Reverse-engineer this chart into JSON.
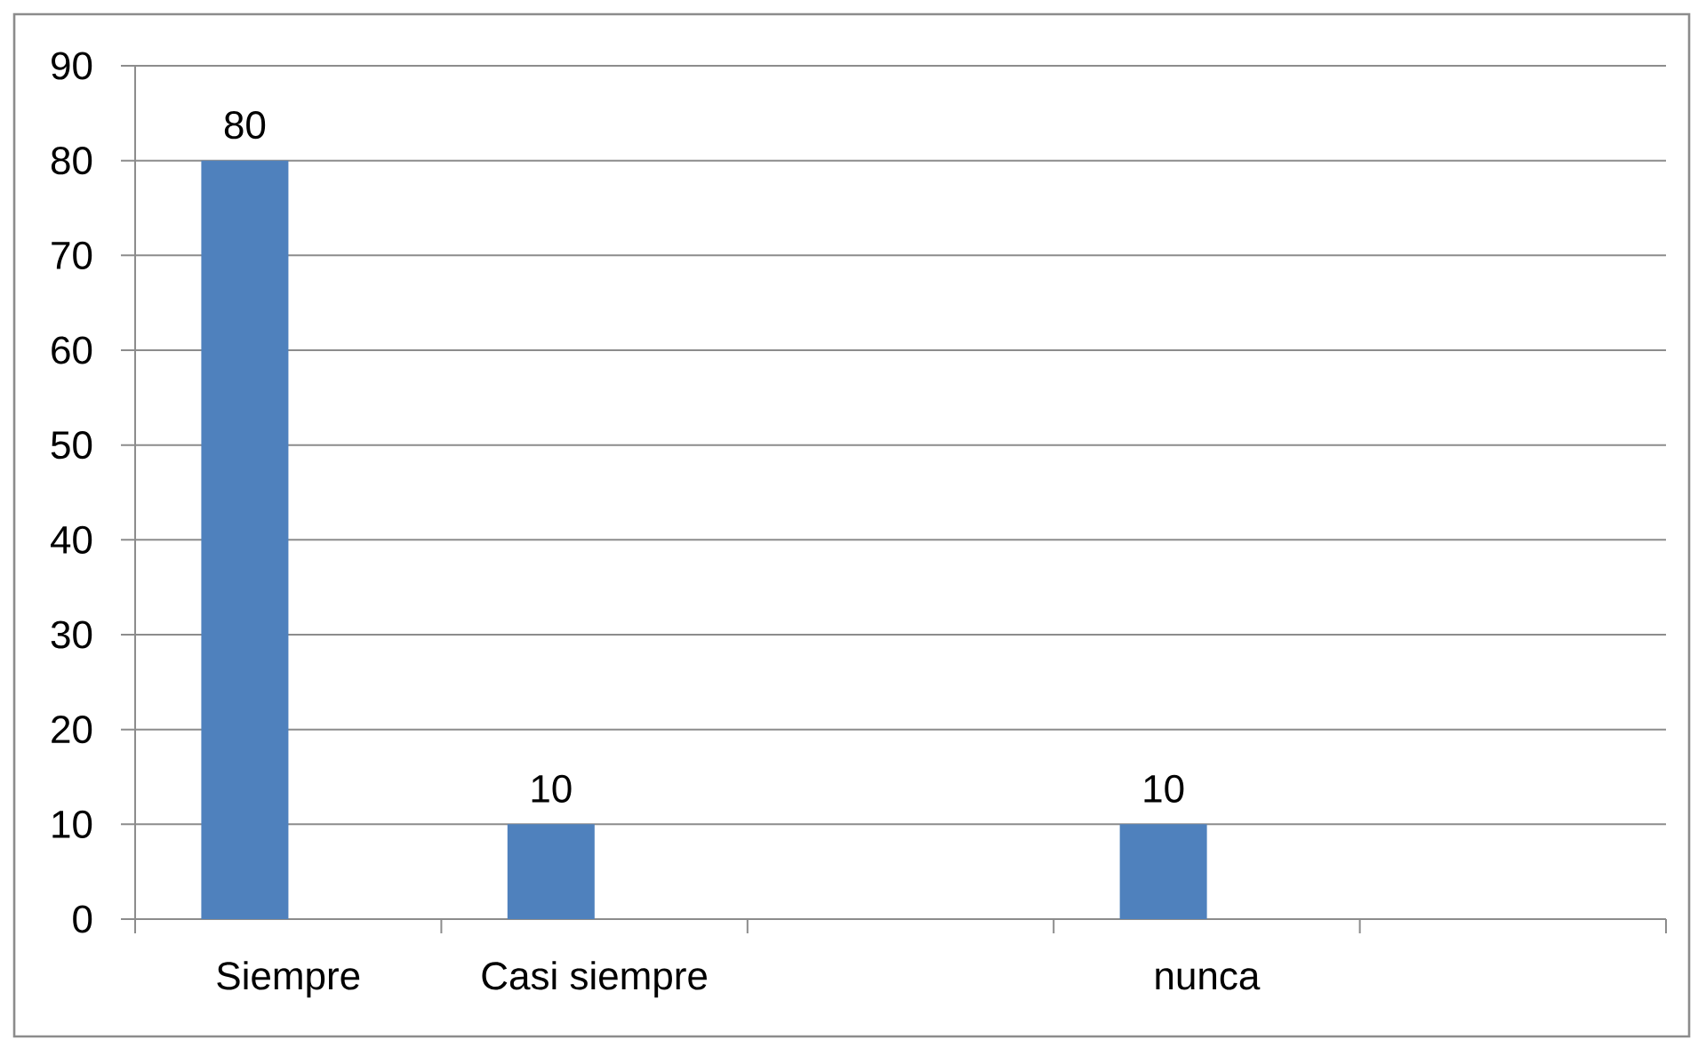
{
  "chart_data": {
    "type": "bar",
    "categories": [
      "Siempre",
      "Casi siempre",
      null,
      "nunca",
      null
    ],
    "values": [
      80,
      10,
      null,
      10,
      null
    ],
    "color": "#4f81bd",
    "ylim": [
      0,
      90
    ],
    "yticks": [
      0,
      10,
      20,
      30,
      40,
      50,
      60,
      70,
      80,
      90
    ],
    "grid": "y",
    "data_labels": true
  }
}
